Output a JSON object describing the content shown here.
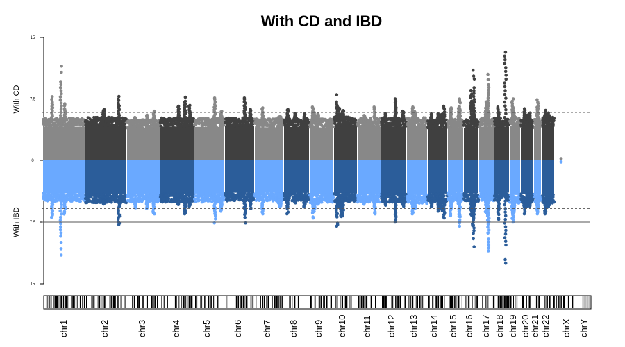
{
  "chart_data": {
    "type": "scatter",
    "subtype": "miami-plot",
    "title": "With CD and IBD",
    "top_label": "With CD",
    "bottom_label": "With IBD",
    "ytick_labels": [
      "15",
      "7.5",
      "0",
      "7.5",
      "15"
    ],
    "ylim_top": [
      0,
      15
    ],
    "ylim_bottom": [
      0,
      15
    ],
    "significance_line": 7.5,
    "suggestive_line": 5,
    "colors": {
      "top_dark": "#404040",
      "top_light": "#888888",
      "bottom_dark": "#2b5d9a",
      "bottom_light": "#6aa9ff",
      "threshold_line": "#555555"
    },
    "chromosomes": [
      {
        "name": "chr1",
        "top_max": 11.5,
        "bottom_max": 11.5
      },
      {
        "name": "chr2",
        "top_max": 7.8,
        "bottom_max": 7.8
      },
      {
        "name": "chr3",
        "top_max": 6.0,
        "bottom_max": 6.5
      },
      {
        "name": "chr4",
        "top_max": 7.7,
        "bottom_max": 6.5
      },
      {
        "name": "chr5",
        "top_max": 7.6,
        "bottom_max": 7.6
      },
      {
        "name": "chr6",
        "top_max": 7.6,
        "bottom_max": 7.6
      },
      {
        "name": "chr7",
        "top_max": 6.4,
        "bottom_max": 6.5
      },
      {
        "name": "chr8",
        "top_max": 6.2,
        "bottom_max": 6.5
      },
      {
        "name": "chr9",
        "top_max": 6.5,
        "bottom_max": 7.0
      },
      {
        "name": "chr10",
        "top_max": 8.0,
        "bottom_max": 8.0
      },
      {
        "name": "chr11",
        "top_max": 6.5,
        "bottom_max": 6.5
      },
      {
        "name": "chr12",
        "top_max": 7.5,
        "bottom_max": 7.5
      },
      {
        "name": "chr13",
        "top_max": 6.5,
        "bottom_max": 6.5
      },
      {
        "name": "chr14",
        "top_max": 6.6,
        "bottom_max": 7.0
      },
      {
        "name": "chr15",
        "top_max": 7.5,
        "bottom_max": 8.0
      },
      {
        "name": "chr16",
        "top_max": 11.0,
        "bottom_max": 10.5
      },
      {
        "name": "chr17",
        "top_max": 10.5,
        "bottom_max": 11.0
      },
      {
        "name": "chr18",
        "top_max": 13.2,
        "bottom_max": 12.5
      },
      {
        "name": "chr19",
        "top_max": 7.5,
        "bottom_max": 7.5
      },
      {
        "name": "chr20",
        "top_max": 6.3,
        "bottom_max": 6.5
      },
      {
        "name": "chr21",
        "top_max": 7.4,
        "bottom_max": 6.5
      },
      {
        "name": "chr22",
        "top_max": 6.1,
        "bottom_max": 6.5
      },
      {
        "name": "chrX",
        "top_max": 0.2,
        "bottom_max": 0.2
      },
      {
        "name": "chrY",
        "top_max": 0,
        "bottom_max": 0
      }
    ]
  }
}
